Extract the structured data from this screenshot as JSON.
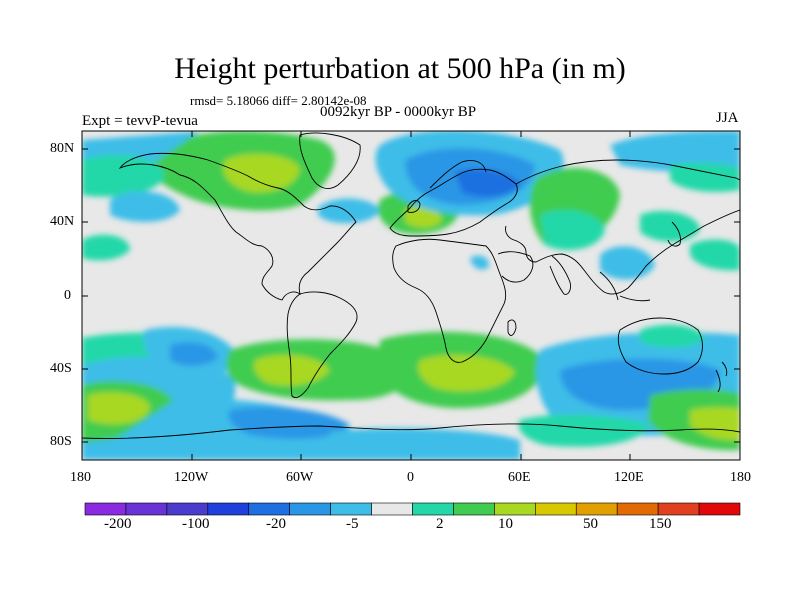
{
  "title": "Height perturbation at 500 hPa (in m)",
  "stats_line": "rmsd= 5.18066 diff= 2.80142e-08",
  "period": "0092kyr BP - 0000kyr BP",
  "experiment": "Expt = tevvP-tevua",
  "season": "JJA",
  "lat_labels": [
    "80N",
    "40N",
    "0",
    "40S",
    "80S"
  ],
  "lon_labels": [
    "180",
    "120W",
    "60W",
    "0",
    "60E",
    "120E",
    "180"
  ],
  "colorbar": {
    "colors": [
      "#8a2be2",
      "#6a33d6",
      "#4a3ccc",
      "#2040dd",
      "#1e6fe0",
      "#2a96e6",
      "#3ebde8",
      "#e8e8e8",
      "#22d8a8",
      "#3fcc50",
      "#a8d820",
      "#d8c800",
      "#e2a000",
      "#e26a00",
      "#e04020",
      "#e00808"
    ],
    "labels": [
      "-200",
      "-100",
      "-20",
      "-5",
      "2",
      "10",
      "50",
      "150"
    ]
  },
  "map_colors": {
    "background": "#e8e8e8",
    "coast": "#000000"
  }
}
